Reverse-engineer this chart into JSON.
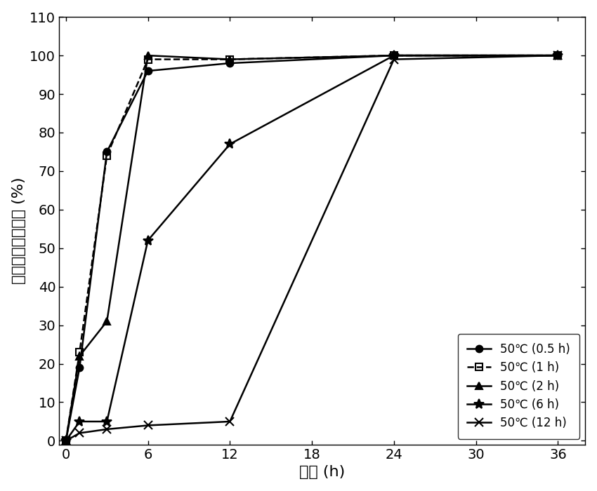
{
  "series": [
    {
      "label": "50℃ (0.5 h)",
      "x": [
        0,
        1,
        3,
        6,
        12,
        24,
        36
      ],
      "y": [
        0,
        19,
        75,
        96,
        98,
        100,
        100
      ],
      "linestyle": "-",
      "marker": "o",
      "marker_size": 7,
      "fillstyle": "full"
    },
    {
      "label": "50℃ (1 h)",
      "x": [
        0,
        1,
        3,
        6,
        12,
        24,
        36
      ],
      "y": [
        0,
        23,
        74,
        99,
        99,
        100,
        100
      ],
      "linestyle": "--",
      "marker": "s",
      "marker_size": 7,
      "fillstyle": "none"
    },
    {
      "label": "50℃ (2 h)",
      "x": [
        0,
        1,
        3,
        6,
        12,
        24,
        36
      ],
      "y": [
        0,
        22,
        31,
        100,
        99,
        100,
        100
      ],
      "linestyle": "-",
      "marker": "^",
      "marker_size": 7,
      "fillstyle": "full"
    },
    {
      "label": "50℃ (6 h)",
      "x": [
        0,
        1,
        3,
        6,
        12,
        24,
        36
      ],
      "y": [
        0,
        5,
        5,
        52,
        77,
        100,
        100
      ],
      "linestyle": "-",
      "marker": "star",
      "marker_size": 10,
      "fillstyle": "full"
    },
    {
      "label": "50℃ (12 h)",
      "x": [
        0,
        1,
        3,
        6,
        12,
        24,
        36
      ],
      "y": [
        0,
        2,
        3,
        4,
        5,
        99,
        100
      ],
      "linestyle": "-",
      "marker": "x",
      "marker_size": 9,
      "fillstyle": "full"
    }
  ],
  "xlabel": "时间 (h)",
  "ylabel": "橄榄苦苷的降解率 (%)",
  "xlim": [
    -0.5,
    38
  ],
  "ylim": [
    -1,
    110
  ],
  "xticks": [
    0,
    6,
    12,
    18,
    24,
    30,
    36
  ],
  "yticks": [
    0,
    10,
    20,
    30,
    40,
    50,
    60,
    70,
    80,
    90,
    100,
    110
  ],
  "background_color": "#ffffff",
  "legend_loc": "lower right",
  "tick_fontsize": 14,
  "label_fontsize": 16,
  "legend_fontsize": 12,
  "linewidth": 1.8
}
